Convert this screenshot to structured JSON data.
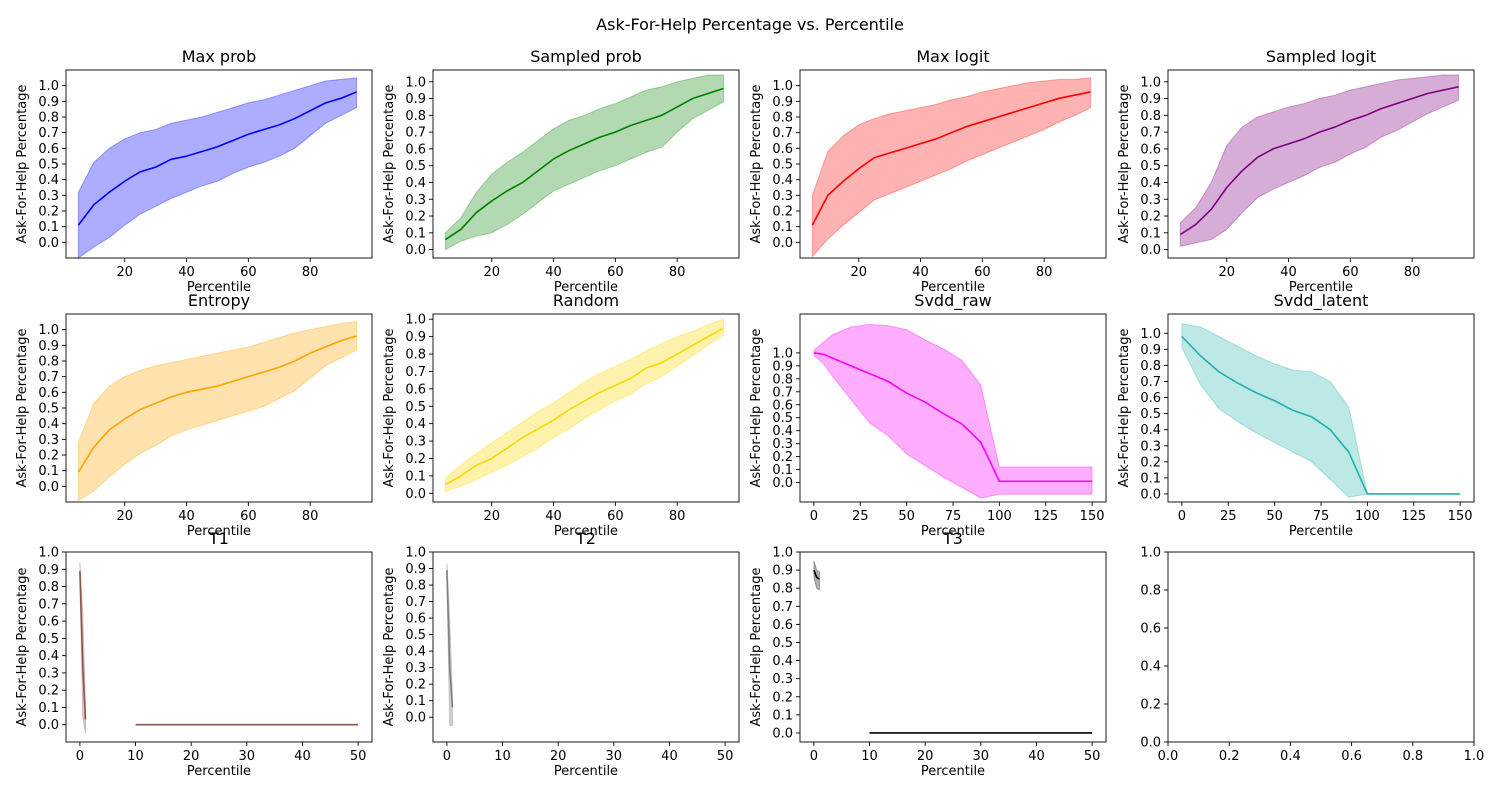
{
  "figure": {
    "suptitle": "Ask-For-Help Percentage vs. Percentile"
  },
  "chart_data": [
    {
      "type": "line",
      "title": "Max prob",
      "xlabel": "Percentile",
      "ylabel": "Ask-For-Help Percentage",
      "xlim": [
        1,
        100
      ],
      "ylim": [
        -0.1,
        1.1
      ],
      "xticks": [
        20,
        40,
        60,
        80
      ],
      "yticks": [
        0.0,
        0.1,
        0.2,
        0.3,
        0.4,
        0.5,
        0.6,
        0.7,
        0.8,
        0.9,
        1.0
      ],
      "color": "#0000ff",
      "fill_alpha": 0.32,
      "series": [
        {
          "x": [
            5,
            10,
            15,
            20,
            25,
            30,
            35,
            40,
            45,
            50,
            55,
            60,
            65,
            70,
            75,
            80,
            85,
            90,
            95
          ],
          "y": [
            0.11,
            0.24,
            0.32,
            0.39,
            0.45,
            0.48,
            0.53,
            0.55,
            0.58,
            0.61,
            0.65,
            0.69,
            0.72,
            0.75,
            0.79,
            0.84,
            0.89,
            0.92,
            0.96
          ],
          "lower": [
            -0.1,
            -0.03,
            0.03,
            0.11,
            0.18,
            0.23,
            0.28,
            0.32,
            0.36,
            0.39,
            0.44,
            0.48,
            0.51,
            0.55,
            0.6,
            0.68,
            0.76,
            0.81,
            0.86
          ],
          "upper": [
            0.32,
            0.51,
            0.6,
            0.66,
            0.7,
            0.72,
            0.76,
            0.78,
            0.8,
            0.83,
            0.86,
            0.89,
            0.91,
            0.94,
            0.97,
            1.0,
            1.03,
            1.04,
            1.05
          ]
        }
      ]
    },
    {
      "type": "line",
      "title": "Sampled prob",
      "xlabel": "Percentile",
      "ylabel": "Ask-For-Help Percentage",
      "xlim": [
        1,
        100
      ],
      "ylim": [
        -0.05,
        1.07
      ],
      "xticks": [
        20,
        40,
        60,
        80
      ],
      "yticks": [
        0.0,
        0.1,
        0.2,
        0.3,
        0.4,
        0.5,
        0.6,
        0.7,
        0.8,
        0.9,
        1.0
      ],
      "color": "#008000",
      "fill_alpha": 0.3,
      "series": [
        {
          "x": [
            5,
            10,
            15,
            20,
            25,
            30,
            35,
            40,
            45,
            50,
            55,
            60,
            65,
            70,
            75,
            80,
            85,
            90,
            95
          ],
          "y": [
            0.06,
            0.12,
            0.22,
            0.29,
            0.35,
            0.4,
            0.47,
            0.54,
            0.59,
            0.63,
            0.67,
            0.7,
            0.74,
            0.77,
            0.8,
            0.85,
            0.9,
            0.93,
            0.96
          ],
          "lower": [
            0.0,
            0.05,
            0.08,
            0.1,
            0.15,
            0.21,
            0.28,
            0.35,
            0.39,
            0.43,
            0.47,
            0.5,
            0.54,
            0.58,
            0.61,
            0.7,
            0.78,
            0.83,
            0.88
          ],
          "upper": [
            0.1,
            0.19,
            0.34,
            0.45,
            0.52,
            0.58,
            0.65,
            0.72,
            0.77,
            0.8,
            0.84,
            0.87,
            0.91,
            0.95,
            0.97,
            1.0,
            1.02,
            1.04,
            1.04
          ]
        }
      ]
    },
    {
      "type": "line",
      "title": "Max logit",
      "xlabel": "Percentile",
      "ylabel": "Ask-For-Help Percentage",
      "xlim": [
        1,
        100
      ],
      "ylim": [
        -0.1,
        1.1
      ],
      "xticks": [
        20,
        40,
        60,
        80
      ],
      "yticks": [
        0.0,
        0.1,
        0.2,
        0.3,
        0.4,
        0.5,
        0.6,
        0.7,
        0.8,
        0.9,
        1.0
      ],
      "color": "#ff0000",
      "fill_alpha": 0.3,
      "series": [
        {
          "x": [
            5,
            10,
            15,
            20,
            25,
            30,
            35,
            40,
            45,
            50,
            55,
            60,
            65,
            70,
            75,
            80,
            85,
            90,
            95
          ],
          "y": [
            0.11,
            0.3,
            0.39,
            0.47,
            0.54,
            0.57,
            0.6,
            0.63,
            0.66,
            0.7,
            0.74,
            0.77,
            0.8,
            0.83,
            0.86,
            0.89,
            0.92,
            0.94,
            0.96
          ],
          "lower": [
            -0.09,
            0.02,
            0.11,
            0.19,
            0.27,
            0.31,
            0.35,
            0.39,
            0.43,
            0.47,
            0.52,
            0.56,
            0.6,
            0.64,
            0.68,
            0.72,
            0.77,
            0.81,
            0.86
          ],
          "upper": [
            0.3,
            0.58,
            0.68,
            0.75,
            0.79,
            0.82,
            0.84,
            0.86,
            0.88,
            0.91,
            0.93,
            0.96,
            0.98,
            1.0,
            1.02,
            1.03,
            1.04,
            1.04,
            1.05
          ]
        }
      ]
    },
    {
      "type": "line",
      "title": "Sampled logit",
      "xlabel": "Percentile",
      "ylabel": "Ask-For-Help Percentage",
      "xlim": [
        1,
        100
      ],
      "ylim": [
        -0.05,
        1.07
      ],
      "xticks": [
        20,
        40,
        60,
        80
      ],
      "yticks": [
        0.0,
        0.1,
        0.2,
        0.3,
        0.4,
        0.5,
        0.6,
        0.7,
        0.8,
        0.9,
        1.0
      ],
      "color": "#800080",
      "fill_alpha": 0.32,
      "series": [
        {
          "x": [
            5,
            10,
            15,
            20,
            25,
            30,
            35,
            40,
            45,
            50,
            55,
            60,
            65,
            70,
            75,
            80,
            85,
            90,
            95
          ],
          "y": [
            0.09,
            0.15,
            0.24,
            0.37,
            0.47,
            0.55,
            0.6,
            0.63,
            0.66,
            0.7,
            0.73,
            0.77,
            0.8,
            0.84,
            0.87,
            0.9,
            0.93,
            0.95,
            0.97
          ],
          "lower": [
            0.02,
            0.04,
            0.06,
            0.12,
            0.22,
            0.31,
            0.36,
            0.4,
            0.44,
            0.49,
            0.52,
            0.57,
            0.61,
            0.67,
            0.71,
            0.76,
            0.81,
            0.85,
            0.89
          ],
          "upper": [
            0.16,
            0.25,
            0.4,
            0.62,
            0.73,
            0.79,
            0.82,
            0.85,
            0.87,
            0.9,
            0.92,
            0.95,
            0.97,
            0.99,
            1.01,
            1.02,
            1.03,
            1.04,
            1.04
          ]
        }
      ]
    },
    {
      "type": "line",
      "title": "Entropy",
      "xlabel": "Percentile",
      "ylabel": "Ask-For-Help Percentage",
      "xlim": [
        1,
        100
      ],
      "ylim": [
        -0.1,
        1.1
      ],
      "xticks": [
        20,
        40,
        60,
        80
      ],
      "yticks": [
        0.0,
        0.1,
        0.2,
        0.3,
        0.4,
        0.5,
        0.6,
        0.7,
        0.8,
        0.9,
        1.0
      ],
      "color": "#ffa500",
      "fill_alpha": 0.32,
      "series": [
        {
          "x": [
            5,
            10,
            15,
            20,
            25,
            30,
            35,
            40,
            45,
            50,
            55,
            60,
            65,
            70,
            75,
            80,
            85,
            90,
            95
          ],
          "y": [
            0.09,
            0.25,
            0.36,
            0.43,
            0.49,
            0.53,
            0.57,
            0.6,
            0.62,
            0.64,
            0.67,
            0.7,
            0.73,
            0.76,
            0.8,
            0.85,
            0.89,
            0.93,
            0.96
          ],
          "lower": [
            -0.09,
            -0.03,
            0.06,
            0.14,
            0.21,
            0.26,
            0.32,
            0.36,
            0.39,
            0.42,
            0.45,
            0.48,
            0.51,
            0.56,
            0.61,
            0.69,
            0.77,
            0.82,
            0.87
          ],
          "upper": [
            0.28,
            0.53,
            0.64,
            0.7,
            0.74,
            0.77,
            0.79,
            0.81,
            0.83,
            0.85,
            0.87,
            0.89,
            0.92,
            0.95,
            0.98,
            1.0,
            1.02,
            1.04,
            1.05
          ]
        }
      ]
    },
    {
      "type": "line",
      "title": "Random",
      "xlabel": "Percentile",
      "ylabel": "Ask-For-Help Percentage",
      "xlim": [
        1,
        100
      ],
      "ylim": [
        -0.05,
        1.03
      ],
      "xticks": [
        20,
        40,
        60,
        80
      ],
      "yticks": [
        0.0,
        0.1,
        0.2,
        0.3,
        0.4,
        0.5,
        0.6,
        0.7,
        0.8,
        0.9,
        1.0
      ],
      "color": "#ffd700",
      "fill_alpha": 0.32,
      "series": [
        {
          "x": [
            5,
            10,
            15,
            20,
            25,
            30,
            35,
            40,
            45,
            50,
            55,
            60,
            65,
            70,
            75,
            80,
            85,
            90,
            95
          ],
          "y": [
            0.05,
            0.1,
            0.16,
            0.2,
            0.26,
            0.32,
            0.37,
            0.42,
            0.48,
            0.53,
            0.58,
            0.62,
            0.66,
            0.72,
            0.75,
            0.8,
            0.85,
            0.9,
            0.95
          ],
          "lower": [
            0.01,
            0.04,
            0.08,
            0.12,
            0.16,
            0.21,
            0.26,
            0.32,
            0.37,
            0.43,
            0.48,
            0.53,
            0.57,
            0.63,
            0.67,
            0.73,
            0.79,
            0.85,
            0.91
          ],
          "upper": [
            0.09,
            0.16,
            0.23,
            0.29,
            0.35,
            0.41,
            0.47,
            0.52,
            0.58,
            0.64,
            0.69,
            0.73,
            0.77,
            0.82,
            0.86,
            0.9,
            0.93,
            0.97,
            1.0
          ]
        }
      ]
    },
    {
      "type": "line",
      "title": "Svdd_raw",
      "xlabel": "Percentile",
      "ylabel": "Ask-For-Help Percentage",
      "xlim": [
        -7.5,
        157.5
      ],
      "ylim": [
        -0.15,
        1.3
      ],
      "xticks": [
        0,
        25,
        50,
        75,
        100,
        125,
        150
      ],
      "yticks": [
        0.0,
        0.1,
        0.2,
        0.3,
        0.4,
        0.5,
        0.6,
        0.7,
        0.8,
        0.9,
        1.0
      ],
      "color": "#ff00ff",
      "fill_alpha": 0.32,
      "series": [
        {
          "x": [
            0,
            5,
            10,
            20,
            30,
            40,
            50,
            60,
            70,
            80,
            90,
            100,
            110,
            120,
            130,
            140,
            150
          ],
          "y": [
            1.0,
            0.99,
            0.96,
            0.9,
            0.84,
            0.78,
            0.69,
            0.62,
            0.53,
            0.45,
            0.31,
            0.01,
            0.01,
            0.01,
            0.01,
            0.01,
            0.01
          ],
          "lower": [
            0.98,
            0.92,
            0.82,
            0.64,
            0.46,
            0.36,
            0.22,
            0.13,
            0.04,
            -0.04,
            -0.12,
            -0.09,
            -0.09,
            -0.09,
            -0.09,
            -0.09,
            -0.09
          ],
          "upper": [
            1.02,
            1.08,
            1.14,
            1.2,
            1.22,
            1.21,
            1.18,
            1.1,
            1.03,
            0.94,
            0.75,
            0.12,
            0.12,
            0.12,
            0.12,
            0.12,
            0.12
          ]
        }
      ]
    },
    {
      "type": "line",
      "title": "Svdd_latent",
      "xlabel": "Percentile",
      "ylabel": "Ask-For-Help Percentage",
      "xlim": [
        -7.5,
        157.5
      ],
      "ylim": [
        -0.05,
        1.12
      ],
      "xticks": [
        0,
        25,
        50,
        75,
        100,
        125,
        150
      ],
      "yticks": [
        0.0,
        0.1,
        0.2,
        0.3,
        0.4,
        0.5,
        0.6,
        0.7,
        0.8,
        0.9,
        1.0
      ],
      "color": "#20b2aa",
      "fill_alpha": 0.3,
      "series": [
        {
          "x": [
            0,
            10,
            20,
            30,
            40,
            50,
            60,
            70,
            80,
            90,
            100,
            110,
            120,
            130,
            140,
            150
          ],
          "y": [
            0.98,
            0.86,
            0.76,
            0.69,
            0.63,
            0.58,
            0.52,
            0.48,
            0.4,
            0.26,
            0.0,
            0.0,
            0.0,
            0.0,
            0.0,
            0.0
          ],
          "lower": [
            0.91,
            0.68,
            0.53,
            0.45,
            0.38,
            0.32,
            0.26,
            0.2,
            0.09,
            -0.02,
            0.0,
            0.0,
            0.0,
            0.0,
            0.0,
            0.0
          ],
          "upper": [
            1.06,
            1.04,
            0.98,
            0.92,
            0.86,
            0.81,
            0.77,
            0.76,
            0.7,
            0.54,
            0.0,
            0.0,
            0.0,
            0.0,
            0.0,
            0.0
          ]
        }
      ]
    },
    {
      "type": "line",
      "title": "T1",
      "xlabel": "Percentile",
      "ylabel": "Ask-For-Help Percentage",
      "xlim": [
        -2.5,
        52.5
      ],
      "ylim": [
        -0.1,
        1.0
      ],
      "xticks": [
        0,
        10,
        20,
        30,
        40,
        50
      ],
      "yticks": [
        0.0,
        0.1,
        0.2,
        0.3,
        0.4,
        0.5,
        0.6,
        0.7,
        0.8,
        0.9,
        1.0
      ],
      "color": "#8c564b",
      "fill_alpha": 0.3,
      "series": [
        {
          "x": [
            0,
            0.5,
            1
          ],
          "y": [
            0.89,
            0.35,
            0.03
          ],
          "lower": [
            0.84,
            0.05,
            -0.05
          ],
          "upper": [
            0.94,
            0.65,
            0.11
          ]
        },
        {
          "x": [
            10,
            50
          ],
          "y": [
            0.0,
            0.0
          ],
          "lower": [
            0.0,
            0.0
          ],
          "upper": [
            0.0,
            0.0
          ]
        }
      ]
    },
    {
      "type": "line",
      "title": "T2",
      "xlabel": "Percentile",
      "ylabel": "Ask-For-Help Percentage",
      "xlim": [
        -2.5,
        52.5
      ],
      "ylim": [
        -0.15,
        1.0
      ],
      "xticks": [
        0,
        10,
        20,
        30,
        40,
        50
      ],
      "yticks": [
        0.0,
        0.1,
        0.2,
        0.3,
        0.4,
        0.5,
        0.6,
        0.7,
        0.8,
        0.9,
        1.0
      ],
      "color": "#7f7f7f",
      "fill_alpha": 0.35,
      "series": [
        {
          "x": [
            0,
            0.5,
            1
          ],
          "y": [
            0.89,
            0.3,
            0.06
          ],
          "lower": [
            0.85,
            -0.05,
            -0.05
          ],
          "upper": [
            0.93,
            0.6,
            0.12
          ]
        }
      ]
    },
    {
      "type": "line",
      "title": "T3",
      "xlabel": "Percentile",
      "ylabel": "Ask-For-Help Percentage",
      "xlim": [
        -2.5,
        52.5
      ],
      "ylim": [
        -0.05,
        1.0
      ],
      "xticks": [
        0,
        10,
        20,
        30,
        40,
        50
      ],
      "yticks": [
        0.0,
        0.1,
        0.2,
        0.3,
        0.4,
        0.5,
        0.6,
        0.7,
        0.8,
        0.9,
        1.0
      ],
      "color": "#000000",
      "fill_alpha": 0.3,
      "series": [
        {
          "x": [
            0,
            0.5,
            1
          ],
          "y": [
            0.9,
            0.86,
            0.85
          ],
          "lower": [
            0.86,
            0.8,
            0.79
          ],
          "upper": [
            0.95,
            0.9,
            0.89
          ]
        },
        {
          "x": [
            10,
            50
          ],
          "y": [
            0.0,
            0.0
          ],
          "lower": [
            0.0,
            0.0
          ],
          "upper": [
            0.0,
            0.0
          ]
        }
      ]
    },
    {
      "type": "line",
      "title": "",
      "xlabel": "",
      "ylabel": "",
      "xlim": [
        0,
        1
      ],
      "ylim": [
        0,
        1
      ],
      "xticks": [
        0.0,
        0.2,
        0.4,
        0.6,
        0.8,
        1.0
      ],
      "yticks": [
        0.0,
        0.2,
        0.4,
        0.6,
        0.8,
        1.0
      ],
      "color": "#000000",
      "fill_alpha": 0.0,
      "series": []
    }
  ]
}
